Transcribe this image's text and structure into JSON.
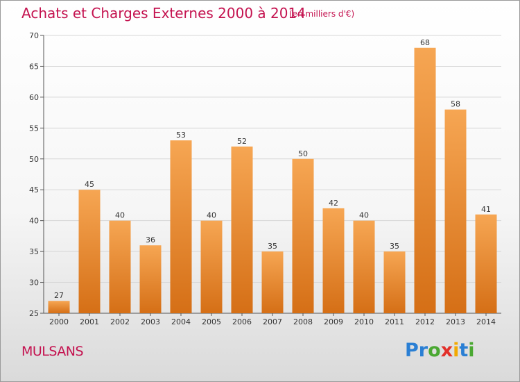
{
  "header": {
    "title": "Achats et Charges Externes 2000 à 2014",
    "subtitle": "(en milliers d'€)"
  },
  "footer": {
    "place": "MULSANS",
    "logo_letters": [
      {
        "char": "P",
        "color": "#2a7fd4"
      },
      {
        "char": "r",
        "color": "#2a7fd4"
      },
      {
        "char": "o",
        "color": "#4aa832"
      },
      {
        "char": "x",
        "color": "#e2302a"
      },
      {
        "char": "i",
        "color": "#f2a900"
      },
      {
        "char": "t",
        "color": "#2a7fd4"
      },
      {
        "char": "i",
        "color": "#4aa832"
      }
    ]
  },
  "colors": {
    "accent": "#c4124f",
    "bar_top": "#f6a653",
    "bar_bottom": "#d56f16",
    "grid": "#d6d6d6"
  },
  "chart_data": {
    "type": "bar",
    "title": "Achats et Charges Externes 2000 à 2014",
    "subtitle": "(en milliers d'€)",
    "xlabel": "",
    "ylabel": "",
    "categories": [
      "2000",
      "2001",
      "2002",
      "2003",
      "2004",
      "2005",
      "2006",
      "2007",
      "2008",
      "2009",
      "2010",
      "2011",
      "2012",
      "2013",
      "2014"
    ],
    "values": [
      27,
      45,
      40,
      36,
      53,
      40,
      52,
      35,
      50,
      42,
      40,
      35,
      68,
      58,
      41
    ],
    "ylim": [
      25,
      70
    ],
    "yticks": [
      25,
      30,
      35,
      40,
      45,
      50,
      55,
      60,
      65,
      70
    ],
    "grid": true,
    "data_labels": true
  }
}
